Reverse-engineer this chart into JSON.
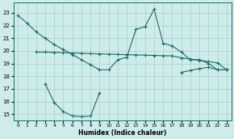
{
  "xlabel": "Humidex (Indice chaleur)",
  "bg_color": "#ceecea",
  "grid_color": "#aed4d0",
  "line_color": "#1a6b6b",
  "xlim": [
    -0.5,
    23.5
  ],
  "ylim": [
    14.5,
    23.8
  ],
  "yticks": [
    15,
    16,
    17,
    18,
    19,
    20,
    21,
    22,
    23
  ],
  "xticks": [
    0,
    1,
    2,
    3,
    4,
    5,
    6,
    7,
    8,
    9,
    10,
    11,
    12,
    13,
    14,
    15,
    16,
    17,
    18,
    19,
    20,
    21,
    22,
    23
  ],
  "line1_x": [
    0,
    1,
    2,
    3,
    4,
    5,
    6,
    7,
    8,
    9,
    10,
    11,
    12,
    13,
    14,
    15,
    16,
    17,
    18,
    19,
    20,
    21,
    22,
    23
  ],
  "line1_y": [
    22.8,
    22.2,
    21.5,
    21.0,
    20.5,
    20.1,
    19.7,
    19.3,
    18.9,
    18.5,
    18.5,
    19.3,
    19.5,
    21.7,
    21.9,
    23.3,
    20.6,
    20.4,
    19.9,
    19.3,
    19.3,
    19.0,
    18.5,
    18.5
  ],
  "line2_x": [
    2,
    3,
    4,
    5,
    6,
    7,
    8,
    9,
    10,
    11,
    12,
    13,
    14,
    15,
    16,
    17,
    18,
    19,
    20,
    21,
    22,
    23
  ],
  "line2_y": [
    19.9,
    19.9,
    19.88,
    19.85,
    19.83,
    19.81,
    19.78,
    19.76,
    19.74,
    19.72,
    19.7,
    19.68,
    19.66,
    19.64,
    19.62,
    19.6,
    19.45,
    19.35,
    19.25,
    19.15,
    19.05,
    18.5
  ],
  "line3_x": [
    3,
    4,
    5,
    6,
    7,
    8,
    9,
    18,
    19,
    20,
    21,
    22,
    23
  ],
  "line3_y": [
    17.4,
    15.9,
    15.2,
    14.85,
    14.8,
    14.85,
    16.7,
    18.3,
    18.45,
    18.6,
    18.7,
    18.5,
    18.5
  ]
}
